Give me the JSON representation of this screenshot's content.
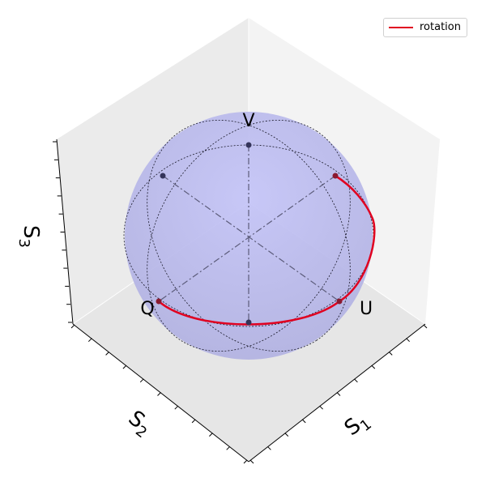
{
  "colors": {
    "sphere": "#b8b8f0",
    "rotation": "#e00020",
    "point": "#34345a",
    "pane": "#f2f2f2",
    "axis": "#000000"
  },
  "labels": {
    "V": "V",
    "Q": "Q",
    "U": "U"
  },
  "axes": {
    "s1": "S",
    "s1_sub": "1",
    "s2": "S",
    "s2_sub": "2",
    "s3": "S",
    "s3_sub": "3"
  },
  "legend": {
    "label": "rotation",
    "color": "#e00020"
  },
  "points": [
    {
      "name": "V",
      "highlight": false
    },
    {
      "name": "top-left",
      "highlight": false
    },
    {
      "name": "top-right",
      "highlight": true
    },
    {
      "name": "Q",
      "highlight": true
    },
    {
      "name": "U",
      "highlight": true
    },
    {
      "name": "bottom",
      "highlight": false
    }
  ]
}
